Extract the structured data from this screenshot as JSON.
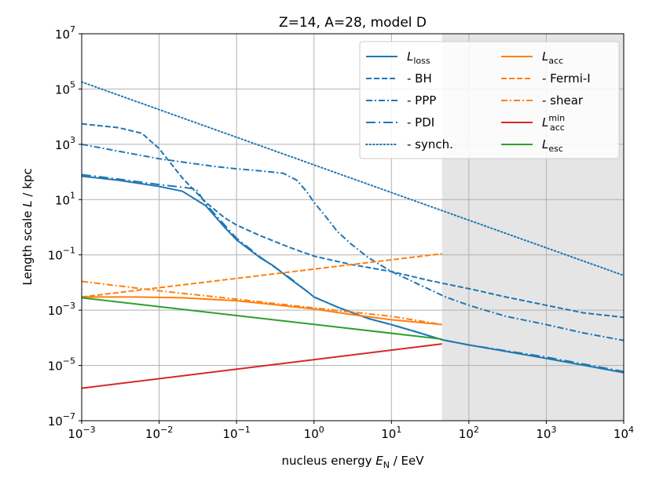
{
  "chart_data": {
    "type": "line",
    "title": "Z=14, A=28, model D",
    "xlabel": {
      "pre": "nucleus energy ",
      "var": "E",
      "sub": "N",
      "post": " / EeV"
    },
    "ylabel": {
      "pre": "Length scale ",
      "var": "L",
      "post": " / kpc"
    },
    "xscale": "log",
    "yscale": "log",
    "xlim": [
      0.001,
      10000
    ],
    "ylim": [
      1e-07,
      10000000.0
    ],
    "grid": true,
    "x_ticks": [
      {
        "base": "10",
        "exp": "−3",
        "value": 0.001
      },
      {
        "base": "10",
        "exp": "−2",
        "value": 0.01
      },
      {
        "base": "10",
        "exp": "−1",
        "value": 0.1
      },
      {
        "base": "10",
        "exp": "0",
        "value": 1
      },
      {
        "base": "10",
        "exp": "1",
        "value": 10
      },
      {
        "base": "10",
        "exp": "2",
        "value": 100
      },
      {
        "base": "10",
        "exp": "3",
        "value": 1000
      },
      {
        "base": "10",
        "exp": "4",
        "value": 10000
      }
    ],
    "y_ticks": [
      {
        "base": "10",
        "exp": "−7",
        "value": 1e-07
      },
      {
        "base": "10",
        "exp": "−5",
        "value": 1e-05
      },
      {
        "base": "10",
        "exp": "−3",
        "value": 0.001
      },
      {
        "base": "10",
        "exp": "−1",
        "value": 0.1
      },
      {
        "base": "10",
        "exp": "1",
        "value": 10
      },
      {
        "base": "10",
        "exp": "3",
        "value": 1000
      },
      {
        "base": "10",
        "exp": "5",
        "value": 100000
      },
      {
        "base": "10",
        "exp": "7",
        "value": 10000000
      }
    ],
    "shaded_region": {
      "x_from": 45,
      "x_to": 10000,
      "color": "#e5e5e5"
    },
    "legend_location": "upper right",
    "series": [
      {
        "key": "loss",
        "label_main": "L",
        "label_sub": "loss",
        "label_sup": "",
        "color": "#1f77b4",
        "dash": "solid",
        "points": [
          [
            0.001,
            70
          ],
          [
            0.003,
            50
          ],
          [
            0.01,
            30
          ],
          [
            0.02,
            20
          ],
          [
            0.04,
            6
          ],
          [
            0.07,
            1
          ],
          [
            0.1,
            0.35
          ],
          [
            0.2,
            0.08
          ],
          [
            0.3,
            0.04
          ],
          [
            0.5,
            0.013
          ],
          [
            0.8,
            0.005
          ],
          [
            1,
            0.003
          ],
          [
            2,
            0.0013
          ],
          [
            5,
            0.0005
          ],
          [
            10,
            0.0003
          ],
          [
            20,
            0.00017
          ],
          [
            45,
            8.5e-05
          ],
          [
            100,
            5.5e-05
          ],
          [
            1000,
            1.8e-05
          ],
          [
            10000,
            5.5e-06
          ]
        ]
      },
      {
        "key": "bh",
        "label_main": "- BH",
        "label_sub": "",
        "label_sup": "",
        "color": "#1f77b4",
        "dash": "dashed",
        "points": [
          [
            0.001,
            5500
          ],
          [
            0.003,
            4000
          ],
          [
            0.006,
            2500
          ],
          [
            0.01,
            700
          ],
          [
            0.02,
            60
          ],
          [
            0.04,
            8
          ],
          [
            0.07,
            2.2
          ],
          [
            0.1,
            1.2
          ],
          [
            0.2,
            0.5
          ],
          [
            0.5,
            0.18
          ],
          [
            1,
            0.09
          ],
          [
            3,
            0.045
          ],
          [
            10,
            0.025
          ],
          [
            30,
            0.012
          ],
          [
            100,
            0.006
          ],
          [
            300,
            0.003
          ],
          [
            1000,
            0.0015
          ],
          [
            3000,
            0.0008
          ],
          [
            10000,
            0.00055
          ]
        ]
      },
      {
        "key": "ppp",
        "label_main": "- PPP",
        "label_sub": "",
        "label_sup": "",
        "color": "#1f77b4",
        "dash": "dashdot",
        "points": [
          [
            0.001,
            1000
          ],
          [
            0.01,
            300
          ],
          [
            0.05,
            160
          ],
          [
            0.1,
            130
          ],
          [
            0.2,
            110
          ],
          [
            0.4,
            90
          ],
          [
            0.6,
            50
          ],
          [
            0.8,
            20
          ],
          [
            1,
            8
          ],
          [
            1.5,
            2
          ],
          [
            2,
            0.7
          ],
          [
            3,
            0.25
          ],
          [
            5,
            0.08
          ],
          [
            10,
            0.025
          ],
          [
            20,
            0.01
          ],
          [
            50,
            0.003
          ],
          [
            100,
            0.0015
          ],
          [
            300,
            0.0006
          ],
          [
            1000,
            0.0003
          ],
          [
            3000,
            0.00015
          ],
          [
            10000,
            8e-05
          ]
        ]
      },
      {
        "key": "pdi",
        "label_main": "- PDI",
        "label_sub": "",
        "label_sup": "",
        "color": "#1f77b4",
        "dash": "longdashdot",
        "points": [
          [
            0.001,
            80
          ],
          [
            0.003,
            55
          ],
          [
            0.01,
            35
          ],
          [
            0.02,
            28
          ],
          [
            0.03,
            24
          ],
          [
            0.04,
            7
          ],
          [
            0.07,
            1.2
          ],
          [
            0.1,
            0.4
          ],
          [
            0.2,
            0.085
          ],
          [
            0.5,
            0.014
          ],
          [
            1,
            0.003
          ],
          [
            2,
            0.0013
          ],
          [
            5,
            0.0005
          ],
          [
            10,
            0.0003
          ],
          [
            20,
            0.00017
          ],
          [
            45,
            8.5e-05
          ],
          [
            100,
            5.5e-05
          ],
          [
            1000,
            2e-05
          ],
          [
            10000,
            6e-06
          ]
        ]
      },
      {
        "key": "synch",
        "label_main": "- synch.",
        "label_sub": "",
        "label_sup": "",
        "color": "#1f77b4",
        "dash": "dotted",
        "points": [
          [
            0.001,
            180000
          ],
          [
            10000,
            0.018
          ]
        ]
      },
      {
        "key": "acc",
        "label_main": "L",
        "label_sub": "acc",
        "label_sup": "",
        "color": "#ff7f0e",
        "dash": "solid",
        "points": [
          [
            0.001,
            0.003
          ],
          [
            0.005,
            0.003
          ],
          [
            0.02,
            0.0028
          ],
          [
            0.1,
            0.0022
          ],
          [
            0.3,
            0.0016
          ],
          [
            1,
            0.0011
          ],
          [
            3,
            0.0007
          ],
          [
            10,
            0.00045
          ],
          [
            45,
            0.0003
          ]
        ]
      },
      {
        "key": "fermi",
        "label_main": "- Fermi-I",
        "label_sub": "",
        "label_sup": "",
        "color": "#ff7f0e",
        "dash": "dashed",
        "points": [
          [
            0.001,
            0.003
          ],
          [
            45,
            0.11
          ]
        ]
      },
      {
        "key": "shear",
        "label_main": "- shear",
        "label_sub": "",
        "label_sup": "",
        "color": "#ff7f0e",
        "dash": "dashdot",
        "points": [
          [
            0.001,
            0.011
          ],
          [
            0.01,
            0.005
          ],
          [
            0.1,
            0.0025
          ],
          [
            1,
            0.0012
          ],
          [
            10,
            0.0006
          ],
          [
            45,
            0.0003
          ]
        ]
      },
      {
        "key": "accmin",
        "label_main": "L",
        "label_sub": "acc",
        "label_sup": "min",
        "color": "#d62728",
        "dash": "solid",
        "points": [
          [
            0.001,
            1.5e-06
          ],
          [
            45,
            6e-05
          ]
        ]
      },
      {
        "key": "esc",
        "label_main": "L",
        "label_sub": "esc",
        "label_sup": "",
        "color": "#2ca02c",
        "dash": "solid",
        "points": [
          [
            0.001,
            0.0028
          ],
          [
            45,
            9e-05
          ]
        ]
      }
    ]
  }
}
